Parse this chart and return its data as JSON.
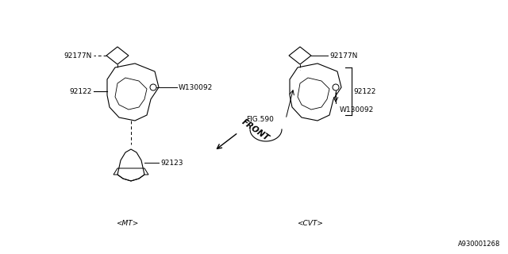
{
  "bg_color": "#ffffff",
  "border_color": "#000000",
  "line_color": "#000000",
  "text_color": "#000000",
  "fig_label": "A930001268",
  "title": "",
  "parts": {
    "mt_label": "<MT>",
    "cvt_label": "<CVT>",
    "front_label": "FRONT",
    "part_92177N": "92177N",
    "part_92122": "92122",
    "part_92123": "92123",
    "part_W130092": "W130092",
    "part_FIG590": "FIG.590"
  }
}
